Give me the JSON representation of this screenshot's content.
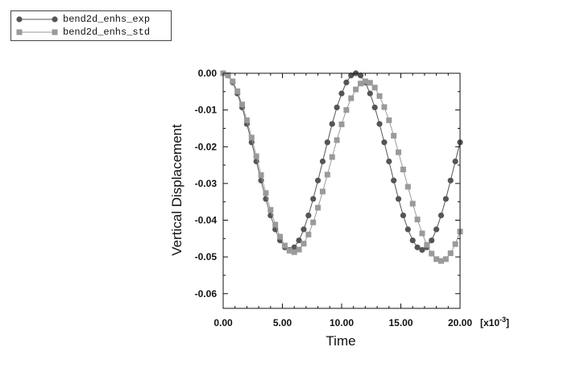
{
  "chart_data": {
    "type": "line",
    "title": "",
    "xlabel": "Time",
    "ylabel": "Vertical Displacement",
    "x_multiplier_label": "[x10",
    "x_multiplier_exp": "-3",
    "x_multiplier_close": "]",
    "xlim": [
      0,
      20
    ],
    "ylim": [
      -0.064,
      0
    ],
    "x_ticks": [
      "0.00",
      "5.00",
      "10.00",
      "15.00",
      "20.00"
    ],
    "y_ticks": [
      "0.00",
      "-0.01",
      "-0.02",
      "-0.03",
      "-0.04",
      "-0.05",
      "-0.06"
    ],
    "grid": false,
    "legend_position": "top-left",
    "series": [
      {
        "name": "bend2d_enhs_exp",
        "color": "#555555",
        "marker": "circle",
        "x": [
          0.0,
          0.4,
          0.8,
          1.2,
          1.6,
          2.0,
          2.4,
          2.8,
          3.2,
          3.6,
          4.0,
          4.4,
          4.8,
          5.2,
          5.6,
          6.0,
          6.4,
          6.8,
          7.2,
          7.6,
          8.0,
          8.4,
          8.8,
          9.2,
          9.6,
          10.0,
          10.4,
          10.8,
          11.2,
          11.6,
          12.0,
          12.4,
          12.8,
          13.2,
          13.6,
          14.0,
          14.4,
          14.8,
          15.2,
          15.6,
          16.0,
          16.4,
          16.8,
          17.2,
          17.6,
          18.0,
          18.4,
          18.8,
          19.2,
          19.6,
          20.0
        ],
        "y": [
          0.0,
          -0.0006,
          -0.0025,
          -0.0055,
          -0.0093,
          -0.0138,
          -0.0188,
          -0.024,
          -0.0292,
          -0.0342,
          -0.0387,
          -0.0425,
          -0.0455,
          -0.0474,
          -0.0481,
          -0.0474,
          -0.0455,
          -0.0425,
          -0.0387,
          -0.0342,
          -0.0292,
          -0.024,
          -0.0188,
          -0.0138,
          -0.0093,
          -0.0055,
          -0.0025,
          -0.0006,
          0.0,
          -0.0006,
          -0.0025,
          -0.0055,
          -0.0093,
          -0.0138,
          -0.0188,
          -0.024,
          -0.0292,
          -0.0342,
          -0.0387,
          -0.0425,
          -0.0455,
          -0.0474,
          -0.0481,
          -0.0474,
          -0.0455,
          -0.0425,
          -0.0387,
          -0.0342,
          -0.0292,
          -0.024,
          -0.0188
        ]
      },
      {
        "name": "bend2d_enhs_std",
        "color": "#9a9a9a",
        "marker": "square",
        "x": [
          0.0,
          0.4,
          0.8,
          1.2,
          1.6,
          2.0,
          2.4,
          2.8,
          3.2,
          3.6,
          4.0,
          4.4,
          4.8,
          5.2,
          5.6,
          6.0,
          6.4,
          6.8,
          7.2,
          7.6,
          8.0,
          8.4,
          8.8,
          9.2,
          9.6,
          10.0,
          10.4,
          10.8,
          11.2,
          11.6,
          12.0,
          12.4,
          12.8,
          13.2,
          13.6,
          14.0,
          14.4,
          14.8,
          15.2,
          15.6,
          16.0,
          16.4,
          16.8,
          17.2,
          17.6,
          18.0,
          18.4,
          18.8,
          19.2,
          19.6,
          20.0
        ],
        "y": [
          0.0,
          -0.0005,
          -0.0022,
          -0.0049,
          -0.0085,
          -0.0128,
          -0.0175,
          -0.0226,
          -0.0277,
          -0.0326,
          -0.0372,
          -0.0412,
          -0.0445,
          -0.0469,
          -0.0483,
          -0.0487,
          -0.048,
          -0.0464,
          -0.0439,
          -0.0406,
          -0.0366,
          -0.0322,
          -0.0276,
          -0.0228,
          -0.0182,
          -0.0139,
          -0.01,
          -0.0068,
          -0.0044,
          -0.0028,
          -0.0022,
          -0.0026,
          -0.0039,
          -0.0062,
          -0.0092,
          -0.0128,
          -0.017,
          -0.0215,
          -0.0262,
          -0.0309,
          -0.0355,
          -0.0398,
          -0.0436,
          -0.0467,
          -0.0491,
          -0.0506,
          -0.0511,
          -0.0506,
          -0.049,
          -0.0465,
          -0.0431
        ]
      }
    ]
  }
}
